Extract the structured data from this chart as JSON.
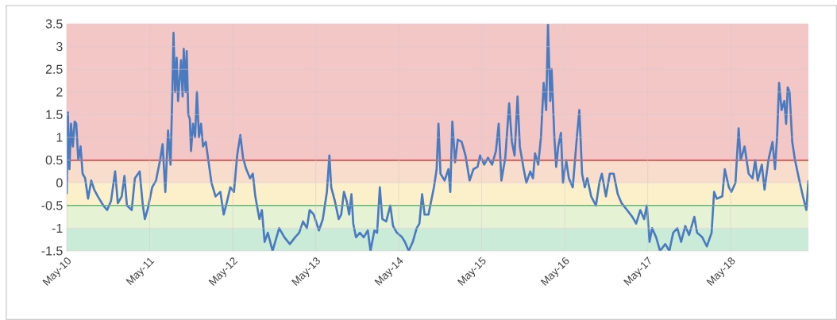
{
  "chart_data": {
    "type": "line",
    "x": [
      "2010-05-01",
      "2010-05-06",
      "2010-05-13",
      "2010-05-20",
      "2010-05-28",
      "2010-06-05",
      "2010-06-12",
      "2010-06-21",
      "2010-07-01",
      "2010-07-10",
      "2010-07-21",
      "2010-08-03",
      "2010-08-17",
      "2010-08-30",
      "2010-09-15",
      "2010-10-09",
      "2010-10-26",
      "2010-11-12",
      "2010-11-30",
      "2010-12-12",
      "2010-12-29",
      "2011-01-10",
      "2011-01-21",
      "2011-02-11",
      "2011-02-25",
      "2011-03-18",
      "2011-04-01",
      "2011-04-10",
      "2011-04-24",
      "2011-05-12",
      "2011-05-29",
      "2011-06-16",
      "2011-06-27",
      "2011-07-09",
      "2011-07-21",
      "2011-08-01",
      "2011-08-09",
      "2011-08-14",
      "2011-08-21",
      "2011-08-28",
      "2011-09-03",
      "2011-09-16",
      "2011-09-23",
      "2011-09-28",
      "2011-10-06",
      "2011-10-11",
      "2011-10-18",
      "2011-10-25",
      "2011-10-30",
      "2011-11-08",
      "2011-11-17",
      "2011-11-25",
      "2011-12-04",
      "2011-12-13",
      "2011-12-22",
      "2012-01-03",
      "2012-01-17",
      "2012-01-28",
      "2012-02-15",
      "2012-03-07",
      "2012-03-22",
      "2012-04-06",
      "2012-04-20",
      "2012-05-06",
      "2012-05-20",
      "2012-06-03",
      "2012-06-15",
      "2012-06-29",
      "2012-07-16",
      "2012-07-28",
      "2012-08-08",
      "2012-08-26",
      "2012-09-06",
      "2012-09-18",
      "2012-10-02",
      "2012-10-23",
      "2012-11-21",
      "2012-12-14",
      "2013-01-07",
      "2013-01-30",
      "2013-02-17",
      "2013-03-06",
      "2013-03-23",
      "2013-04-04",
      "2013-04-22",
      "2013-05-15",
      "2013-06-01",
      "2013-06-19",
      "2013-06-30",
      "2013-07-08",
      "2013-07-24",
      "2013-08-10",
      "2013-08-21",
      "2013-09-02",
      "2013-09-14",
      "2013-09-25",
      "2013-10-05",
      "2013-10-13",
      "2013-10-25",
      "2013-11-11",
      "2013-11-28",
      "2013-12-16",
      "2013-12-28",
      "2014-01-14",
      "2014-01-26",
      "2014-02-07",
      "2014-02-18",
      "2014-03-07",
      "2014-03-25",
      "2014-04-06",
      "2014-04-23",
      "2014-05-16",
      "2014-05-28",
      "2014-06-14",
      "2014-07-02",
      "2014-07-19",
      "2014-07-31",
      "2014-08-12",
      "2014-08-23",
      "2014-09-09",
      "2014-09-21",
      "2014-10-03",
      "2014-10-15",
      "2014-10-23",
      "2014-11-01",
      "2014-11-19",
      "2014-12-06",
      "2014-12-14",
      "2014-12-23",
      "2015-01-04",
      "2015-01-16",
      "2015-02-02",
      "2015-02-19",
      "2015-03-09",
      "2015-03-26",
      "2015-04-13",
      "2015-04-24",
      "2015-05-12",
      "2015-05-29",
      "2015-06-16",
      "2015-07-03",
      "2015-07-15",
      "2015-07-27",
      "2015-08-13",
      "2015-08-30",
      "2015-09-11",
      "2015-09-23",
      "2015-10-06",
      "2015-10-16",
      "2015-11-02",
      "2015-11-14",
      "2015-12-01",
      "2015-12-13",
      "2015-12-22",
      "2016-01-05",
      "2016-01-17",
      "2016-01-29",
      "2016-02-09",
      "2016-02-17",
      "2016-02-27",
      "2016-03-04",
      "2016-03-16",
      "2016-03-24",
      "2016-04-02",
      "2016-04-14",
      "2016-04-23",
      "2016-05-07",
      "2016-05-19",
      "2016-06-05",
      "2016-06-23",
      "2016-07-04",
      "2016-07-16",
      "2016-07-28",
      "2016-08-08",
      "2016-08-25",
      "2016-09-15",
      "2016-09-30",
      "2016-10-11",
      "2016-10-29",
      "2016-11-15",
      "2016-12-02",
      "2016-12-20",
      "2017-01-06",
      "2017-01-30",
      "2017-02-22",
      "2017-03-11",
      "2017-03-29",
      "2017-04-15",
      "2017-04-27",
      "2017-05-09",
      "2017-05-20",
      "2017-06-07",
      "2017-06-24",
      "2017-07-17",
      "2017-08-04",
      "2017-08-21",
      "2017-09-08",
      "2017-09-25",
      "2017-10-13",
      "2017-10-30",
      "2017-11-22",
      "2017-12-04",
      "2017-12-27",
      "2018-01-16",
      "2018-02-06",
      "2018-02-17",
      "2018-03-01",
      "2018-03-25",
      "2018-04-05",
      "2018-04-23",
      "2018-05-04",
      "2018-05-22",
      "2018-06-05",
      "2018-06-14",
      "2018-07-01",
      "2018-07-19",
      "2018-08-05",
      "2018-08-17",
      "2018-08-28",
      "2018-09-15",
      "2018-09-27",
      "2018-10-14",
      "2018-11-01",
      "2018-11-12",
      "2018-11-21",
      "2018-11-30",
      "2018-12-11",
      "2018-12-23",
      "2018-12-31",
      "2019-01-07",
      "2019-01-15",
      "2019-01-27",
      "2019-02-08",
      "2019-02-25",
      "2019-03-15",
      "2019-03-30",
      "2019-04-08"
    ],
    "series": [
      {
        "color": "#4a7bbf",
        "values": [
          -0.25,
          1.55,
          0.3,
          1.3,
          0.8,
          1.35,
          1.3,
          0.5,
          0.8,
          0.2,
          0.1,
          -0.35,
          0.05,
          -0.15,
          -0.3,
          -0.5,
          -0.6,
          -0.4,
          0.25,
          -0.45,
          -0.3,
          0.15,
          -0.5,
          -0.6,
          0.1,
          0.25,
          -0.5,
          -0.8,
          -0.55,
          -0.1,
          0.05,
          0.5,
          0.85,
          -0.2,
          1.15,
          0.4,
          2.0,
          3.3,
          2.0,
          2.75,
          1.8,
          2.7,
          1.9,
          2.95,
          2.0,
          2.9,
          1.5,
          1.4,
          0.7,
          1.3,
          1.0,
          2.0,
          1.0,
          1.3,
          0.8,
          0.9,
          0.4,
          0,
          -0.3,
          -0.2,
          -0.7,
          -0.4,
          -0.1,
          -0.2,
          0.6,
          1.05,
          0.55,
          0.3,
          0.1,
          0.2,
          -0.3,
          -0.8,
          -0.6,
          -1.3,
          -1.1,
          -1.5,
          -1.0,
          -1.2,
          -1.35,
          -1.2,
          -1.1,
          -0.85,
          -1.0,
          -0.6,
          -0.7,
          -1.05,
          -0.8,
          -0.2,
          0.6,
          -0.1,
          -0.4,
          -0.8,
          -0.7,
          -0.2,
          -0.4,
          -0.7,
          -0.25,
          -0.9,
          -1.2,
          -1.1,
          -1.2,
          -1.05,
          -1.5,
          -1.05,
          -1.1,
          -0.1,
          -0.8,
          -0.85,
          -0.5,
          -0.95,
          -1.1,
          -1.2,
          -1.3,
          -1.5,
          -1.3,
          -1.0,
          -0.9,
          -0.25,
          -0.7,
          -0.7,
          -0.4,
          -0.1,
          0.3,
          1.3,
          0.2,
          0.05,
          0.3,
          -0.2,
          1.35,
          0.45,
          0.95,
          0.9,
          0.6,
          0.05,
          0.3,
          0.35,
          0.6,
          0.4,
          0.55,
          0.4,
          0.7,
          1.3,
          0.05,
          0.55,
          1.75,
          0.9,
          0.6,
          1.9,
          0.8,
          0.3,
          0.0,
          0.25,
          0.1,
          0.65,
          0.4,
          1.0,
          2.2,
          1.6,
          3.5,
          1.8,
          2.5,
          1.0,
          0.35,
          0.8,
          1.1,
          0.0,
          0.5,
          0.1,
          -0.1,
          1.0,
          1.6,
          0.2,
          -0.1,
          0.1,
          -0.3,
          -0.5,
          0.0,
          0.2,
          -0.3,
          0.2,
          0.2,
          -0.25,
          -0.45,
          -0.6,
          -0.75,
          -0.9,
          -0.6,
          -0.8,
          -0.5,
          -1.3,
          -1.0,
          -1.2,
          -1.5,
          -1.35,
          -1.5,
          -1.1,
          -1.0,
          -1.3,
          -0.95,
          -1.15,
          -0.75,
          -1.1,
          -1.2,
          -1.4,
          -1.1,
          -0.2,
          -0.35,
          -0.3,
          0.3,
          -0.1,
          -0.2,
          0.0,
          1.2,
          0.5,
          0.8,
          0.2,
          0.1,
          0.5,
          0.05,
          0.4,
          -0.15,
          0.5,
          0.9,
          0.3,
          1.0,
          2.2,
          1.6,
          1.8,
          1.3,
          2.1,
          2.0,
          0.9,
          0.5,
          0.1,
          -0.3,
          -0.6,
          0.05
        ]
      }
    ],
    "xlim": [
      "2010-05-01",
      "2019-04-08"
    ],
    "xticks": [
      {
        "value": "2010-05-01",
        "label": "May-10"
      },
      {
        "value": "2011-05-01",
        "label": "May-11"
      },
      {
        "value": "2012-05-01",
        "label": "May-12"
      },
      {
        "value": "2013-05-01",
        "label": "May-13"
      },
      {
        "value": "2014-05-01",
        "label": "May-14"
      },
      {
        "value": "2015-05-01",
        "label": "May-15"
      },
      {
        "value": "2016-05-01",
        "label": "May-16"
      },
      {
        "value": "2017-05-01",
        "label": "May-17"
      },
      {
        "value": "2018-05-01",
        "label": "May-18"
      }
    ],
    "ylim": [
      -1.5,
      3.5
    ],
    "yticks": [
      -1.5,
      -1,
      -0.5,
      0,
      0.5,
      1,
      1.5,
      2,
      2.5,
      3,
      3.5
    ],
    "grid": true,
    "ref_lines": [
      {
        "axis": "y",
        "value": 0.5,
        "color": "#c00000"
      },
      {
        "axis": "y",
        "value": -0.5,
        "color": "#2aa846"
      }
    ],
    "bands": [
      {
        "axis": "y",
        "from": 0.5,
        "to": 3.5,
        "color": "#f4c7c7"
      },
      {
        "axis": "y",
        "from": 0,
        "to": 0.5,
        "color": "#f8dccc"
      },
      {
        "axis": "y",
        "from": -0.5,
        "to": 0,
        "color": "#fcf0ca"
      },
      {
        "axis": "y",
        "from": -1,
        "to": -0.5,
        "color": "#e6f2d4"
      },
      {
        "axis": "y",
        "from": -1.5,
        "to": -1,
        "color": "#cbebd9"
      }
    ]
  }
}
